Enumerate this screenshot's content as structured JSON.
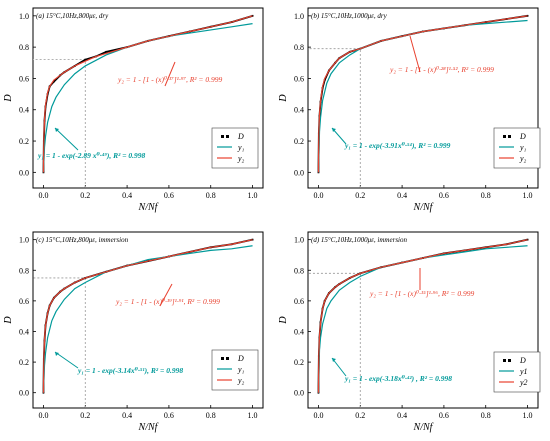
{
  "colors": {
    "data": "#000000",
    "y1": "#009a9a",
    "y2": "#e8412f",
    "guide": "#999999"
  },
  "chart_data": [
    {
      "type": "line",
      "title": "(a) 15°C,10Hz,800με, dry",
      "xlabel": "N/Nf",
      "ylabel": "D",
      "xlim": [
        -0.05,
        1.05
      ],
      "ylim": [
        -0.1,
        1.05
      ],
      "xticks": [
        "0.0",
        "0.2",
        "0.4",
        "0.6",
        "0.8",
        "1.0"
      ],
      "yticks": [
        "0.0",
        "0.2",
        "0.4",
        "0.6",
        "0.8",
        "1.0"
      ],
      "guide": {
        "x": 0.2,
        "y": 0.72
      },
      "series": [
        {
          "name": "D",
          "x": [
            0.0,
            0.002,
            0.005,
            0.01,
            0.02,
            0.03,
            0.05,
            0.08,
            0.1,
            0.15,
            0.2,
            0.25,
            0.3,
            0.4,
            0.5,
            0.6,
            0.7,
            0.8,
            0.9,
            1.0
          ],
          "y": [
            0.0,
            0.2,
            0.33,
            0.42,
            0.5,
            0.55,
            0.58,
            0.62,
            0.64,
            0.68,
            0.72,
            0.74,
            0.77,
            0.8,
            0.84,
            0.87,
            0.9,
            0.93,
            0.96,
            1.0
          ]
        },
        {
          "name": "y1",
          "x": [
            0.0,
            0.005,
            0.01,
            0.02,
            0.04,
            0.06,
            0.1,
            0.15,
            0.2,
            0.3,
            0.4,
            0.5,
            0.6,
            0.7,
            0.8,
            0.9,
            1.0
          ],
          "y": [
            0.0,
            0.16,
            0.23,
            0.32,
            0.42,
            0.48,
            0.56,
            0.63,
            0.68,
            0.75,
            0.8,
            0.84,
            0.87,
            0.89,
            0.91,
            0.93,
            0.95
          ]
        },
        {
          "name": "y2",
          "x": [
            0.0,
            0.002,
            0.005,
            0.01,
            0.02,
            0.03,
            0.05,
            0.08,
            0.1,
            0.15,
            0.2,
            0.25,
            0.3,
            0.4,
            0.5,
            0.6,
            0.7,
            0.8,
            0.9,
            1.0
          ],
          "y": [
            0.0,
            0.22,
            0.34,
            0.43,
            0.51,
            0.55,
            0.59,
            0.62,
            0.64,
            0.68,
            0.71,
            0.74,
            0.76,
            0.8,
            0.84,
            0.87,
            0.9,
            0.93,
            0.96,
            1.0
          ]
        }
      ],
      "annotations": {
        "y2_eq": "y₂ = 1 - [1 - (x)⁰·¹⁷]¹·⁹⁷, R² = 0.999",
        "y1_eq": "y₁ = 1 - exp(-2.89 x⁰·⁴⁹), R² = 0.998"
      },
      "legend": {
        "placement": "bottom-right",
        "entries": [
          "D",
          "y₁",
          "y₂"
        ]
      }
    },
    {
      "type": "line",
      "title": "(b) 15°C,10Hz,1000με, dry",
      "xlabel": "N/Nf",
      "ylabel": "D",
      "xlim": [
        -0.05,
        1.05
      ],
      "ylim": [
        -0.1,
        1.05
      ],
      "xticks": [
        "0.0",
        "0.2",
        "0.4",
        "0.6",
        "0.8",
        "1.0"
      ],
      "yticks": [
        "0.0",
        "0.2",
        "0.4",
        "0.6",
        "0.8",
        "1.0"
      ],
      "guide": {
        "x": 0.2,
        "y": 0.79
      },
      "series": [
        {
          "name": "D",
          "x": [
            0.0,
            0.002,
            0.005,
            0.01,
            0.02,
            0.03,
            0.05,
            0.08,
            0.1,
            0.15,
            0.2,
            0.3,
            0.4,
            0.5,
            0.6,
            0.7,
            0.8,
            0.9,
            1.0
          ],
          "y": [
            0.0,
            0.25,
            0.36,
            0.45,
            0.54,
            0.59,
            0.65,
            0.7,
            0.73,
            0.77,
            0.79,
            0.84,
            0.87,
            0.9,
            0.92,
            0.94,
            0.96,
            0.98,
            1.0
          ]
        },
        {
          "name": "y1",
          "x": [
            0.0,
            0.005,
            0.01,
            0.02,
            0.04,
            0.06,
            0.1,
            0.15,
            0.2,
            0.3,
            0.4,
            0.5,
            0.6,
            0.7,
            0.8,
            0.9,
            1.0
          ],
          "y": [
            0.0,
            0.26,
            0.35,
            0.46,
            0.57,
            0.63,
            0.7,
            0.75,
            0.79,
            0.84,
            0.87,
            0.9,
            0.92,
            0.94,
            0.95,
            0.96,
            0.97
          ]
        },
        {
          "name": "y2",
          "x": [
            0.0,
            0.002,
            0.005,
            0.01,
            0.02,
            0.03,
            0.05,
            0.08,
            0.1,
            0.15,
            0.2,
            0.3,
            0.4,
            0.5,
            0.6,
            0.7,
            0.8,
            0.9,
            1.0
          ],
          "y": [
            0.0,
            0.26,
            0.37,
            0.46,
            0.55,
            0.6,
            0.65,
            0.7,
            0.73,
            0.77,
            0.79,
            0.84,
            0.87,
            0.9,
            0.92,
            0.94,
            0.96,
            0.98,
            1.0
          ]
        }
      ],
      "annotations": {
        "y2_eq": "y₂ = 1 - [1 - (x)⁰·²⁸]¹·⁵², R² = 0.999",
        "y1_eq": "y₁ = 1 - exp(-3.91x⁰·⁵⁴), R² = 0.999"
      },
      "legend": {
        "placement": "bottom-right",
        "entries": [
          "D",
          "y₁",
          "y₂"
        ]
      }
    },
    {
      "type": "line",
      "title": "(c) 15°C,10Hz,800με, immersion",
      "xlabel": "N/Nf",
      "ylabel": "D",
      "xlim": [
        -0.05,
        1.05
      ],
      "ylim": [
        -0.1,
        1.05
      ],
      "xticks": [
        "0.0",
        "0.2",
        "0.4",
        "0.6",
        "0.8",
        "1.0"
      ],
      "yticks": [
        "0.0",
        "0.2",
        "0.4",
        "0.6",
        "0.8",
        "1.0"
      ],
      "guide": {
        "x": 0.2,
        "y": 0.75
      },
      "series": [
        {
          "name": "D",
          "x": [
            0.0,
            0.002,
            0.005,
            0.01,
            0.02,
            0.03,
            0.05,
            0.08,
            0.1,
            0.15,
            0.2,
            0.3,
            0.4,
            0.5,
            0.6,
            0.7,
            0.8,
            0.9,
            1.0
          ],
          "y": [
            0.0,
            0.22,
            0.34,
            0.44,
            0.52,
            0.57,
            0.62,
            0.66,
            0.68,
            0.72,
            0.75,
            0.79,
            0.83,
            0.86,
            0.89,
            0.92,
            0.95,
            0.97,
            1.0
          ]
        },
        {
          "name": "y1",
          "x": [
            0.0,
            0.005,
            0.01,
            0.02,
            0.04,
            0.06,
            0.1,
            0.15,
            0.2,
            0.3,
            0.4,
            0.5,
            0.6,
            0.7,
            0.8,
            0.9,
            1.0
          ],
          "y": [
            0.0,
            0.18,
            0.26,
            0.36,
            0.47,
            0.53,
            0.61,
            0.68,
            0.72,
            0.79,
            0.83,
            0.87,
            0.89,
            0.91,
            0.93,
            0.94,
            0.96
          ]
        },
        {
          "name": "y2",
          "x": [
            0.0,
            0.002,
            0.005,
            0.01,
            0.02,
            0.03,
            0.05,
            0.08,
            0.1,
            0.15,
            0.2,
            0.3,
            0.4,
            0.5,
            0.6,
            0.7,
            0.8,
            0.9,
            1.0
          ],
          "y": [
            0.0,
            0.23,
            0.35,
            0.44,
            0.52,
            0.57,
            0.62,
            0.66,
            0.68,
            0.72,
            0.75,
            0.79,
            0.83,
            0.86,
            0.89,
            0.92,
            0.95,
            0.97,
            1.0
          ]
        }
      ],
      "annotations": {
        "y2_eq": "y₂ = 1 - [1 - (x)⁰·¹⁹]¹·⁹¹, R² = 0.999",
        "y1_eq": "y₁ = 1 - exp(-3.14x⁰·⁵¹), R² = 0.998"
      },
      "legend": {
        "placement": "bottom-right",
        "entries": [
          "D",
          "y₁",
          "y₂"
        ]
      }
    },
    {
      "type": "line",
      "title": "(d) 15°C,10Hz,1000με, immersion",
      "xlabel": "N/Nf",
      "ylabel": "D",
      "xlim": [
        -0.05,
        1.05
      ],
      "ylim": [
        -0.1,
        1.05
      ],
      "xticks": [
        "0.0",
        "0.2",
        "0.4",
        "0.6",
        "0.8",
        "1.0"
      ],
      "yticks": [
        "0.0",
        "0.2",
        "0.4",
        "0.6",
        "0.8",
        "1.0"
      ],
      "guide": {
        "x": 0.2,
        "y": 0.78
      },
      "series": [
        {
          "name": "D",
          "x": [
            0.0,
            0.002,
            0.005,
            0.01,
            0.02,
            0.03,
            0.05,
            0.08,
            0.1,
            0.15,
            0.2,
            0.3,
            0.4,
            0.5,
            0.6,
            0.7,
            0.8,
            0.9,
            1.0
          ],
          "y": [
            0.0,
            0.24,
            0.36,
            0.46,
            0.55,
            0.6,
            0.65,
            0.69,
            0.71,
            0.75,
            0.78,
            0.82,
            0.85,
            0.88,
            0.91,
            0.93,
            0.95,
            0.97,
            1.0
          ]
        },
        {
          "name": "y1",
          "x": [
            0.0,
            0.005,
            0.01,
            0.02,
            0.04,
            0.06,
            0.1,
            0.15,
            0.2,
            0.3,
            0.4,
            0.5,
            0.6,
            0.7,
            0.8,
            0.9,
            1.0
          ],
          "y": [
            0.0,
            0.28,
            0.36,
            0.45,
            0.55,
            0.6,
            0.67,
            0.72,
            0.76,
            0.82,
            0.85,
            0.88,
            0.9,
            0.92,
            0.94,
            0.95,
            0.96
          ]
        },
        {
          "name": "y2",
          "x": [
            0.0,
            0.002,
            0.005,
            0.01,
            0.02,
            0.03,
            0.05,
            0.08,
            0.1,
            0.15,
            0.2,
            0.3,
            0.4,
            0.5,
            0.6,
            0.7,
            0.8,
            0.9,
            1.0
          ],
          "y": [
            0.0,
            0.25,
            0.37,
            0.46,
            0.55,
            0.6,
            0.65,
            0.69,
            0.71,
            0.75,
            0.78,
            0.82,
            0.85,
            0.88,
            0.91,
            0.93,
            0.95,
            0.97,
            1.0
          ]
        }
      ],
      "annotations": {
        "y2_eq": "y₂ = 1 - [1 - (x)⁰·¹⁵]¹·⁹⁶, R² = 0.999",
        "y1_eq": "y₁ = 1 - exp(-3.18x⁰·⁴²) , R² = 0.998"
      },
      "legend": {
        "placement": "bottom-right",
        "entries": [
          "D",
          "y1",
          "y2"
        ]
      }
    }
  ]
}
